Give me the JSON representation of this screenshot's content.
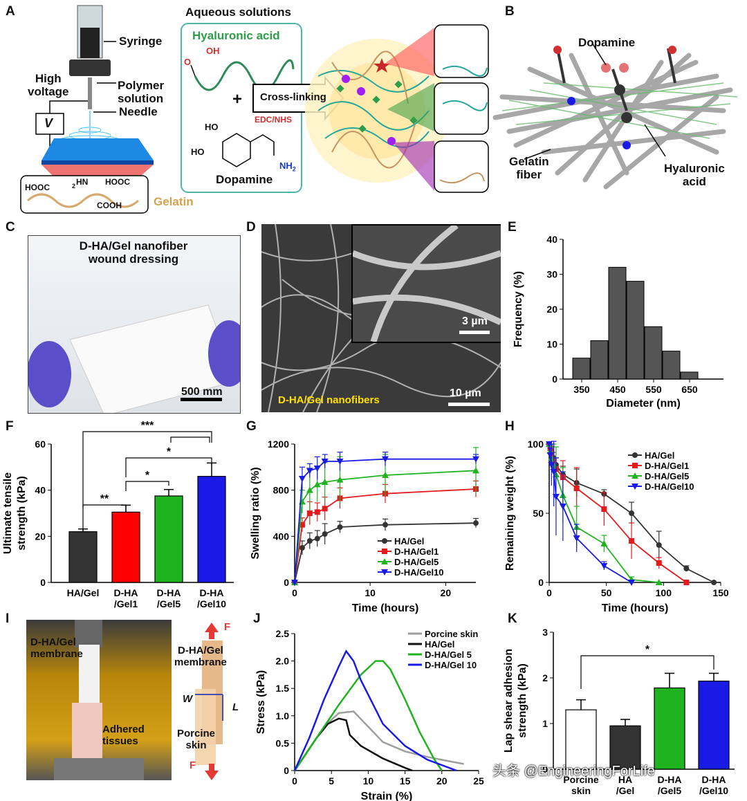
{
  "panels": {
    "A": {
      "letter": "A",
      "syringe": "Syringe",
      "high_voltage": "High\nvoltage",
      "polymer_solution": "Polymer\nsolution",
      "needle": "Needle",
      "v": "V",
      "gelatin": "Gelatin",
      "gel_hooc1": "HOOC",
      "gel_hn": "HN",
      "gel_2": "2",
      "gel_hooc2": "HOOC",
      "gel_cooh": "COOH",
      "aqueous": "Aqueous solutions",
      "hyaluronic": "Hyaluronic acid",
      "oh": "OH",
      "o": "O",
      "plus": "+",
      "crosslinking": "Cross-linking",
      "edc_nhs": "EDC/NHS",
      "ho1": "HO",
      "ho2": "HO",
      "nh2": "NH",
      "nh2_sub": "2",
      "dopamine": "Dopamine"
    },
    "B": {
      "letter": "B",
      "dopamine": "Dopamine",
      "gelatin_fiber": "Gelatin\nfiber",
      "hyaluronic_acid": "Hyaluronic\nacid"
    },
    "C": {
      "letter": "C",
      "title": "D-HA/Gel nanofiber\nwound dressing",
      "scale": "500 mm"
    },
    "D": {
      "letter": "D",
      "label": "D-HA/Gel nanofibers",
      "scale_main": "10 µm",
      "scale_inset": "3 µm"
    },
    "E": {
      "letter": "E"
    },
    "F": {
      "letter": "F"
    },
    "G": {
      "letter": "G"
    },
    "H": {
      "letter": "H"
    },
    "I": {
      "letter": "I",
      "membrane_photo": "D-HA/Gel\nmembrane",
      "adhered": "Adhered\ntissues",
      "membrane_diagram": "D-HA/Gel\nmembrane",
      "porcine": "Porcine\nskin",
      "w": "W",
      "l": "L",
      "f": "F"
    },
    "J": {
      "letter": "J"
    },
    "K": {
      "letter": "K"
    }
  },
  "watermark": "头条 @EngineeringForLife",
  "colors": {
    "black": "#333333",
    "red": "#e41a1c",
    "green": "#1fb31f",
    "blue": "#1a1ae6",
    "gray": "#9e9e9e",
    "bar": "#555555"
  },
  "chart_data": [
    {
      "id": "E",
      "type": "bar",
      "xlabel": "Diameter (nm)",
      "ylabel": "Frequency (%)",
      "categories": [
        "350",
        "400",
        "450",
        "500",
        "550",
        "600",
        "650"
      ],
      "values": [
        6,
        11,
        32,
        28,
        15,
        8,
        2
      ],
      "xticks": [
        "350",
        "450",
        "550",
        "650"
      ],
      "ylim": [
        0,
        40
      ],
      "yticks": [
        "0",
        "10",
        "20",
        "30",
        "40"
      ]
    },
    {
      "id": "F",
      "type": "bar",
      "ylabel": "Ultimate tensile\nstrength (kPa)",
      "categories": [
        "HA/Gel",
        "D-HA\n/Gel1",
        "D-HA\n/Gel5",
        "D-HA\n/Gel10"
      ],
      "values": [
        22,
        30.5,
        37.5,
        46
      ],
      "errors": [
        1.2,
        3,
        2.8,
        5.8
      ],
      "colors": [
        "#333333",
        "#ff0000",
        "#1fb31f",
        "#1a1ae6"
      ],
      "ylim": [
        0,
        60
      ],
      "yticks": [
        "0",
        "20",
        "40",
        "60"
      ],
      "significance": [
        "***",
        "*",
        "*",
        "**"
      ]
    },
    {
      "id": "G",
      "type": "line",
      "xlabel": "Time (hours)",
      "ylabel": "Swelling ratio (%)",
      "xlim": [
        0,
        24
      ],
      "ylim": [
        0,
        1200
      ],
      "xticks": [
        "0",
        "10",
        "20"
      ],
      "yticks": [
        "0",
        "400",
        "800",
        "1200"
      ],
      "x": [
        0,
        1,
        2,
        3,
        4,
        6,
        12,
        24
      ],
      "series": [
        {
          "name": "HA/Gel",
          "values": [
            0,
            300,
            360,
            380,
            420,
            480,
            500,
            515
          ],
          "errors": [
            0,
            60,
            70,
            70,
            90,
            50,
            50,
            40
          ]
        },
        {
          "name": "D-HA/Gel1",
          "values": [
            0,
            500,
            600,
            610,
            640,
            730,
            770,
            810
          ],
          "errors": [
            0,
            60,
            100,
            80,
            100,
            90,
            80,
            70
          ]
        },
        {
          "name": "D-HA/Gel5",
          "values": [
            0,
            700,
            800,
            850,
            870,
            890,
            930,
            970
          ],
          "errors": [
            0,
            100,
            180,
            150,
            170,
            200,
            180,
            200
          ]
        },
        {
          "name": "D-HA/Gel10",
          "values": [
            0,
            900,
            970,
            990,
            1050,
            1050,
            1070,
            1070
          ],
          "errors": [
            0,
            100,
            60,
            100,
            60,
            80,
            60,
            40
          ]
        }
      ]
    },
    {
      "id": "H",
      "type": "line",
      "xlabel": "Time (hours)",
      "ylabel": "Remaining weight (%)",
      "xlim": [
        0,
        150
      ],
      "ylim": [
        0,
        100
      ],
      "xticks": [
        "0",
        "50",
        "100",
        "150"
      ],
      "yticks": [
        "0",
        "50",
        "100"
      ],
      "series": [
        {
          "name": "HA/Gel",
          "x": [
            0,
            1,
            2,
            4,
            6,
            12,
            24,
            48,
            72,
            96,
            120,
            144
          ],
          "values": [
            100,
            98,
            95,
            90,
            85,
            78,
            72,
            64,
            50,
            27,
            10,
            0
          ],
          "errors": [
            0,
            2,
            3,
            4,
            5,
            6,
            10,
            3,
            8,
            10,
            2,
            0
          ]
        },
        {
          "name": "D-HA/Gel1",
          "x": [
            0,
            1,
            2,
            4,
            6,
            12,
            24,
            48,
            72,
            96,
            120
          ],
          "values": [
            100,
            97,
            93,
            88,
            82,
            76,
            68,
            53,
            30,
            14,
            0
          ],
          "errors": [
            0,
            3,
            5,
            6,
            8,
            12,
            15,
            12,
            13,
            4,
            0
          ]
        },
        {
          "name": "D-HA/Gel5",
          "x": [
            0,
            1,
            2,
            4,
            6,
            12,
            24,
            48,
            72,
            96
          ],
          "values": [
            100,
            95,
            90,
            85,
            78,
            63,
            40,
            28,
            2,
            0
          ],
          "errors": [
            0,
            5,
            8,
            15,
            20,
            20,
            15,
            6,
            2,
            0
          ]
        },
        {
          "name": "D-HA/Gel10",
          "x": [
            0,
            1,
            2,
            4,
            6,
            12,
            24,
            48,
            72
          ],
          "values": [
            100,
            92,
            85,
            80,
            62,
            55,
            32,
            12,
            0
          ],
          "errors": [
            0,
            5,
            15,
            25,
            28,
            25,
            10,
            3,
            0
          ]
        }
      ]
    },
    {
      "id": "J",
      "type": "line",
      "xlabel": "Strain (%)",
      "ylabel": "Stress (kPa)",
      "xlim": [
        0,
        25
      ],
      "ylim": [
        0,
        2.5
      ],
      "xticks": [
        "0",
        "5",
        "10",
        "15",
        "20",
        "25"
      ],
      "yticks": [
        "0",
        "0.5",
        "1.0",
        "1.5",
        "2.0",
        "2.5"
      ],
      "series": [
        {
          "name": "Porcine skin",
          "x": [
            0,
            2,
            4,
            6,
            8,
            10,
            12,
            15,
            18,
            21,
            23
          ],
          "values": [
            0,
            0.4,
            0.8,
            1.05,
            1.08,
            0.8,
            0.52,
            0.35,
            0.25,
            0.17,
            0.12
          ]
        },
        {
          "name": "HA/Gel",
          "x": [
            0,
            1.5,
            3,
            4.5,
            6,
            7,
            7.5,
            9,
            12,
            15,
            16
          ],
          "values": [
            0,
            0.3,
            0.6,
            0.85,
            0.95,
            0.92,
            0.65,
            0.45,
            0.22,
            0.05,
            0
          ]
        },
        {
          "name": "D-HA/Gel 5",
          "x": [
            0,
            3,
            6,
            9,
            11,
            12,
            13,
            15,
            17,
            19,
            20
          ],
          "values": [
            0,
            0.6,
            1.2,
            1.75,
            2.0,
            2.0,
            1.85,
            1.3,
            0.7,
            0.2,
            0
          ]
        },
        {
          "name": "D-HA/Gel 10",
          "x": [
            0,
            2,
            4,
            6,
            7,
            8,
            9,
            12,
            15,
            18,
            21,
            22
          ],
          "values": [
            0,
            0.6,
            1.3,
            1.9,
            2.18,
            2.0,
            1.65,
            0.85,
            0.45,
            0.2,
            0.05,
            0
          ]
        }
      ]
    },
    {
      "id": "K",
      "type": "bar",
      "ylabel": "Lap shear adhesion\nstrength (kPa)",
      "categories": [
        "Porcine\nskin",
        "HA\n/Gel",
        "D-HA\n/Gel5",
        "D-HA\n/Gel10"
      ],
      "values": [
        1.3,
        0.95,
        1.78,
        1.93
      ],
      "errors": [
        0.22,
        0.14,
        0.32,
        0.17
      ],
      "colors": [
        "#ffffff",
        "#333333",
        "#1fb31f",
        "#1a1ae6"
      ],
      "ylim": [
        0,
        3
      ],
      "yticks": [
        "0",
        "1",
        "2",
        "3"
      ],
      "significance": [
        "*"
      ]
    }
  ]
}
